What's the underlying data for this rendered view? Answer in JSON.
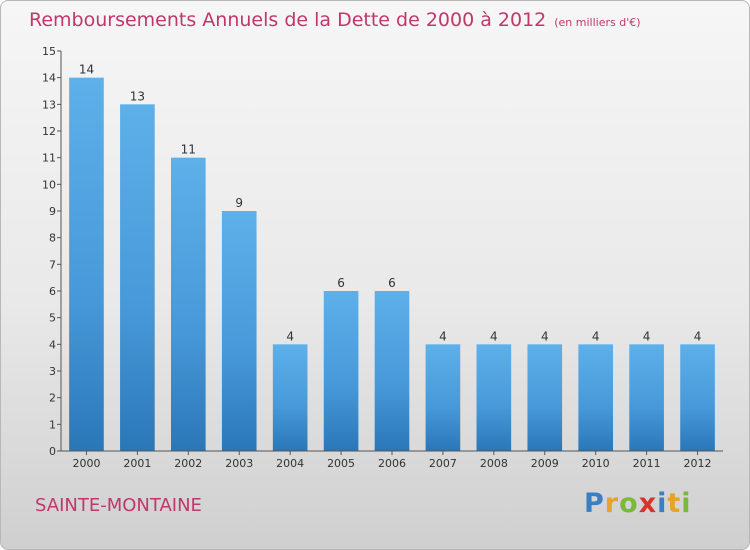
{
  "chart_data": {
    "type": "bar",
    "title": "Remboursements Annuels de la Dette de 2000 à 2012",
    "unit": "(en milliers d'€)",
    "categories": [
      "2000",
      "2001",
      "2002",
      "2003",
      "2004",
      "2005",
      "2006",
      "2007",
      "2008",
      "2009",
      "2010",
      "2011",
      "2012"
    ],
    "values": [
      14,
      13,
      11,
      9,
      4,
      6,
      6,
      4,
      4,
      4,
      4,
      4,
      4
    ],
    "data_labels": [
      "14",
      "13",
      "11",
      "9",
      "4",
      "6",
      "6",
      "4",
      "4",
      "4",
      "4",
      "4",
      "4"
    ],
    "yticks": [
      "0",
      "1",
      "2",
      "3",
      "4",
      "5",
      "6",
      "7",
      "8",
      "9",
      "10",
      "11",
      "12",
      "13",
      "14",
      "15"
    ],
    "ylim": [
      0,
      15
    ],
    "bar_color": "#4fa3e0",
    "bar_color_dark": "#2a77b8",
    "grid": false,
    "legend": "none"
  },
  "footer": {
    "commune": "SAINTE-MONTAINE",
    "logo_letters": [
      "P",
      "r",
      "o",
      "x",
      "i",
      "t",
      "i"
    ],
    "logo_colors": [
      "#3a7fc4",
      "#e8a12a",
      "#7cb83a",
      "#d9342b",
      "#3a7fc4",
      "#e8a12a",
      "#7cb83a"
    ]
  }
}
